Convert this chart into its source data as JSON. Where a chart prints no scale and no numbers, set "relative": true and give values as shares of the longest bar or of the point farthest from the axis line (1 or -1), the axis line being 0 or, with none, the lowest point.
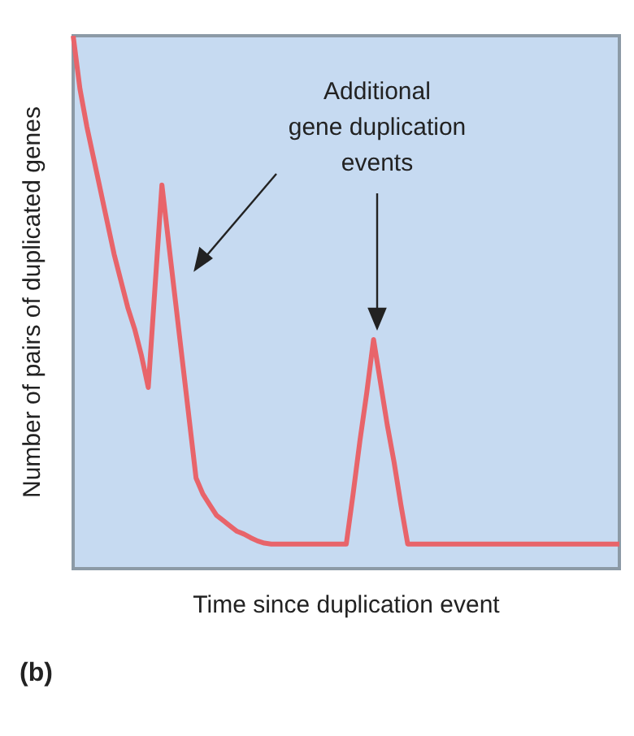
{
  "chart_data": {
    "type": "line",
    "relative": true,
    "xlabel": "Time since duplication event",
    "ylabel": "Number of pairs of duplicated genes",
    "annotations": [
      "Additional\ngene duplication\nevents",
      "(b)"
    ],
    "color": "#e8646a",
    "categories": [
      null,
      null,
      null,
      null,
      null,
      null,
      null,
      null,
      null,
      null,
      null,
      null,
      null,
      null,
      null,
      null,
      null,
      null,
      null,
      null,
      null,
      null,
      null,
      null,
      null,
      null,
      null,
      null,
      null,
      null,
      null,
      null,
      null,
      null,
      null,
      null,
      null,
      null,
      null,
      null,
      null,
      null,
      null,
      null,
      null,
      null,
      null,
      null,
      null,
      null,
      null,
      null,
      null,
      null,
      null,
      null,
      null,
      null,
      null,
      null,
      null,
      null,
      null,
      null,
      null,
      null,
      null,
      null,
      null,
      null,
      null,
      null,
      null,
      null,
      null,
      null,
      null,
      null,
      null,
      null,
      null
    ],
    "values": [
      1.0,
      0.9,
      0.83,
      0.77,
      0.71,
      0.65,
      0.59,
      0.54,
      0.49,
      0.45,
      0.4,
      0.34,
      0.53,
      0.72,
      0.61,
      0.5,
      0.39,
      0.28,
      0.17,
      0.14,
      0.12,
      0.1,
      0.09,
      0.08,
      0.07,
      0.065,
      0.058,
      0.052,
      0.048,
      0.046,
      0.046,
      0.046,
      0.046,
      0.046,
      0.046,
      0.046,
      0.046,
      0.046,
      0.046,
      0.046,
      0.046,
      0.14,
      0.24,
      0.33,
      0.43,
      0.35,
      0.27,
      0.2,
      0.12,
      0.046,
      0.046,
      0.046,
      0.046,
      0.046,
      0.046,
      0.046,
      0.046,
      0.046,
      0.046,
      0.046,
      0.046,
      0.046,
      0.046,
      0.046,
      0.046,
      0.046,
      0.046,
      0.046,
      0.046,
      0.046,
      0.046,
      0.046,
      0.046,
      0.046,
      0.046,
      0.046,
      0.046,
      0.046,
      0.046,
      0.046,
      0.046
    ]
  }
}
